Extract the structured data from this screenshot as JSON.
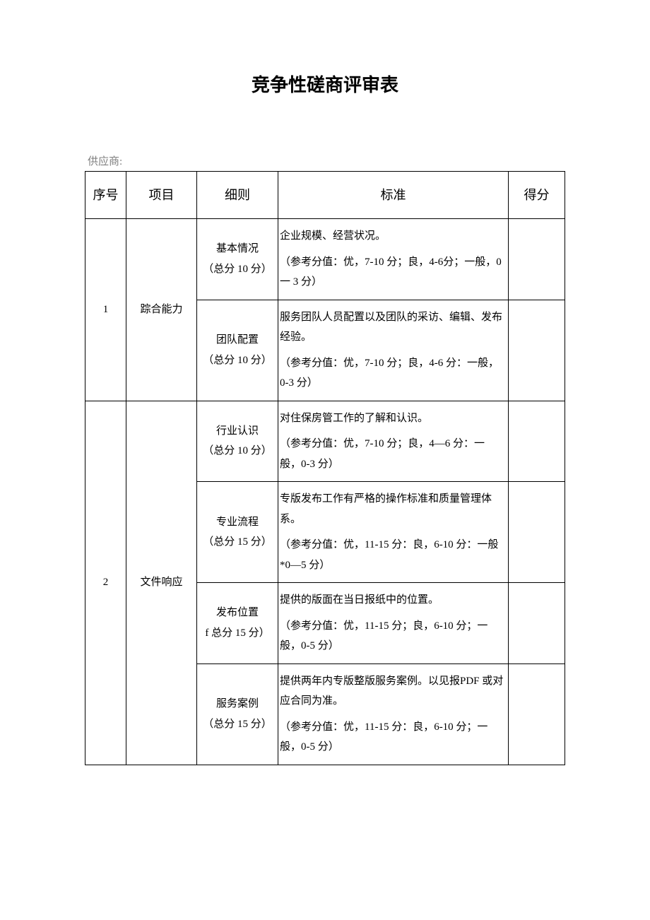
{
  "title": "竞争性磋商评审表",
  "supplier_label": "供应商:",
  "headers": {
    "seq": "序号",
    "project": "项目",
    "detail": "细则",
    "standard": "标准",
    "score": "得分"
  },
  "sections": [
    {
      "seq": "1",
      "project": "踪合能力",
      "rows": [
        {
          "detail_l1": "基本情况",
          "detail_l2": "（总分 10 分）",
          "std_l1": "企业规模、经营状况。",
          "std_l2": "（参考分值：优，7-10 分；良，4-6分；一般，0 一 3 分）"
        },
        {
          "detail_l1": "团队配置",
          "detail_l2": "（总分 10 分）",
          "std_l1": "服务团队人员配置以及团队的采访、编辑、发布经验。",
          "std_l2": "（参考分值：优，7-10 分；良，4-6 分：一般，0-3 分）"
        }
      ]
    },
    {
      "seq": "2",
      "project": "文件响应",
      "rows": [
        {
          "detail_l1": "行业认识",
          "detail_l2": "（总分 10 分）",
          "std_l1": "对住保房管工作的了解和认识。",
          "std_l2": "（参考分值：优，7-10 分；良，4—6 分：一般，0-3 分）"
        },
        {
          "detail_l1": "专业流程",
          "detail_l2": "（总分 15 分）",
          "std_l1": "专版发布工作有严格的操作标准和质量管理体系。",
          "std_l2": "（参考分值：优，11-15 分：良，6-10 分：一般*0—5 分）"
        },
        {
          "detail_l1": "发布位置",
          "detail_l2": "f 总分 15 分）",
          "std_l1": "提供的版面在当日报纸中的位置。",
          "std_l2": "（参考分值：优，11-15 分；良，6-10 分；一般，0-5 分）"
        },
        {
          "detail_l1": "服务案例",
          "detail_l2": "（总分 15 分）",
          "std_l1": "提供两年内专版整版服务案例。以见报PDF 或对应合同为准。",
          "std_l2": "（参考分值：优，11-15 分：良，6-10 分；一般，0-5 分）"
        }
      ]
    }
  ]
}
